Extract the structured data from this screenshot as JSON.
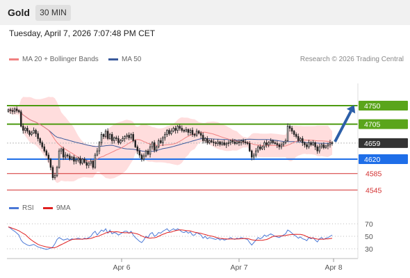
{
  "header": {
    "title": "Gold",
    "timeframe": "30 MIN"
  },
  "timestamp": "Tuesday, April 7, 2026 7:07:48 PM CET",
  "legend": {
    "ma_bb": "MA 20 + Bollinger Bands",
    "ma50": "MA 50",
    "credit": "Research © 2026 Trading Central"
  },
  "rsi_legend": {
    "rsi": "RSI",
    "ma9": "9MA"
  },
  "colors": {
    "support": "#1e6ee8",
    "resistance": "#4c9a10",
    "pivot": "#d32f2f",
    "last": "#333333",
    "ma20": "#f08080",
    "ma50": "#3a5a9c",
    "rsi": "#4a78d6",
    "ma9": "#e02020",
    "bands": "#ffd9d9"
  },
  "chart_data": [
    {
      "type": "candlestick",
      "instrument": "Gold",
      "interval": "30 MIN",
      "x_ticks": [
        "Apr 6",
        "Apr 7",
        "Apr 8"
      ],
      "y_range": [
        4530,
        4820
      ],
      "levels": [
        {
          "value": 4750,
          "label": "4750",
          "kind": "resistance"
        },
        {
          "value": 4705,
          "label": "4705",
          "kind": "resistance"
        },
        {
          "value": 4659,
          "label": "4659",
          "kind": "last"
        },
        {
          "value": 4620,
          "label": "4620",
          "kind": "support"
        },
        {
          "value": 4585,
          "label": "4585",
          "kind": "pivot"
        },
        {
          "value": 4545,
          "label": "4545",
          "kind": "pivot"
        }
      ],
      "series": [
        {
          "name": "MA 20 + Bollinger Bands"
        },
        {
          "name": "MA 50"
        }
      ],
      "closes": [
        4740,
        4738,
        4736,
        4742,
        4738,
        4735,
        4700,
        4690,
        4695,
        4688,
        4680,
        4684,
        4690,
        4682,
        4670,
        4660,
        4650,
        4640,
        4630,
        4620,
        4600,
        4575,
        4580,
        4600,
        4640,
        4645,
        4625,
        4630,
        4628,
        4620,
        4625,
        4615,
        4618,
        4622,
        4610,
        4620,
        4612,
        4605,
        4610,
        4615,
        4600,
        4630,
        4640,
        4660,
        4680,
        4675,
        4688,
        4670,
        4680,
        4665,
        4672,
        4670,
        4660,
        4665,
        4670,
        4675,
        4678,
        4672,
        4680,
        4665,
        4650,
        4640,
        4630,
        4620,
        4628,
        4640,
        4632,
        4650,
        4660,
        4642,
        4650,
        4665,
        4660,
        4672,
        4680,
        4690,
        4682,
        4688,
        4695,
        4690,
        4700,
        4695,
        4690,
        4688,
        4692,
        4685,
        4690,
        4680,
        4678,
        4688,
        4683,
        4678,
        4665,
        4670,
        4660,
        4665,
        4662,
        4660,
        4658,
        4662,
        4656,
        4660,
        4655,
        4658,
        4660,
        4665,
        4662,
        4658,
        4662,
        4660,
        4665,
        4662,
        4660,
        4658,
        4640,
        4625,
        4630,
        4640,
        4650,
        4645,
        4650,
        4660,
        4655,
        4660,
        4665,
        4660,
        4658,
        4655,
        4650,
        4655,
        4660,
        4665,
        4700,
        4695,
        4688,
        4680,
        4675,
        4665,
        4670,
        4660,
        4655,
        4650,
        4660,
        4655,
        4660,
        4650,
        4640,
        4650,
        4655,
        4648,
        4652,
        4655,
        4660,
        4659
      ],
      "rsi_axis": [
        30,
        50,
        70
      ],
      "rsi": [
        65,
        63,
        60,
        58,
        55,
        52,
        44,
        40,
        38,
        36,
        35,
        36,
        37,
        35,
        33,
        32,
        31,
        30,
        29,
        30,
        31,
        33,
        38,
        45,
        48,
        46,
        44,
        45,
        46,
        44,
        46,
        45,
        46,
        47,
        46,
        45,
        47,
        46,
        48,
        50,
        55,
        58,
        52,
        56,
        60,
        58,
        62,
        55,
        60,
        54,
        56,
        55,
        52,
        54,
        56,
        58,
        58,
        55,
        58,
        52,
        48,
        45,
        42,
        40,
        44,
        50,
        48,
        54,
        56,
        50,
        52,
        56,
        55,
        58,
        60,
        62,
        58,
        60,
        62,
        60,
        62,
        60,
        57,
        56,
        58,
        55,
        57,
        52,
        52,
        56,
        54,
        52,
        47,
        50,
        46,
        48,
        47,
        46,
        45,
        47,
        44,
        46,
        44,
        45,
        46,
        48,
        46,
        45,
        47,
        46,
        48,
        47,
        46,
        45,
        40,
        36,
        40,
        44,
        48,
        46,
        48,
        52,
        50,
        52,
        54,
        52,
        50,
        49,
        48,
        50,
        52,
        54,
        60,
        58,
        55,
        52,
        50,
        47,
        49,
        46,
        45,
        43,
        48,
        46,
        48,
        44,
        41,
        46,
        48,
        45,
        47,
        48,
        50,
        52
      ]
    }
  ]
}
